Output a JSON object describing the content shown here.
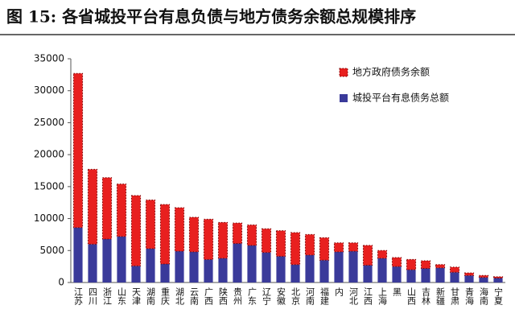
{
  "chart_data": {
    "type": "stacked_bar",
    "title": "图 15: 各省城投平台有息负债与地方债务余额总规模排序",
    "categories": [
      "江苏",
      "四川",
      "浙江",
      "山东",
      "天津",
      "湖南",
      "重庆",
      "湖北",
      "云南",
      "广西",
      "陕西",
      "贵州",
      "广东",
      "辽宁",
      "安徽",
      "北京",
      "河南",
      "福建",
      "内",
      "河北",
      "江西",
      "上海",
      "黑",
      "山西",
      "吉林",
      "新疆",
      "甘肃",
      "青海",
      "海南",
      "宁夏"
    ],
    "series": [
      {
        "name": "地方政府债务余额",
        "color": "#e8201f",
        "values": [
          24100,
          11700,
          9600,
          8200,
          11000,
          7600,
          9300,
          6800,
          5400,
          6300,
          5600,
          3200,
          3200,
          3700,
          4000,
          5000,
          3200,
          3500,
          1400,
          1300,
          3100,
          1200,
          1400,
          1600,
          1200,
          500,
          800,
          400,
          300,
          200
        ]
      },
      {
        "name": "城投平台有息债务总额",
        "color": "#3a3a9a",
        "values": [
          8600,
          6000,
          6800,
          7200,
          2600,
          5300,
          2900,
          4900,
          4800,
          3600,
          3800,
          6100,
          5800,
          4700,
          4100,
          2800,
          4300,
          3500,
          4800,
          4900,
          2700,
          3800,
          2500,
          2000,
          2200,
          2300,
          1600,
          1100,
          800,
          700
        ]
      }
    ],
    "ylim": [
      0,
      35000
    ],
    "yticks": [
      0,
      5000,
      10000,
      15000,
      20000,
      25000,
      30000,
      35000
    ]
  }
}
